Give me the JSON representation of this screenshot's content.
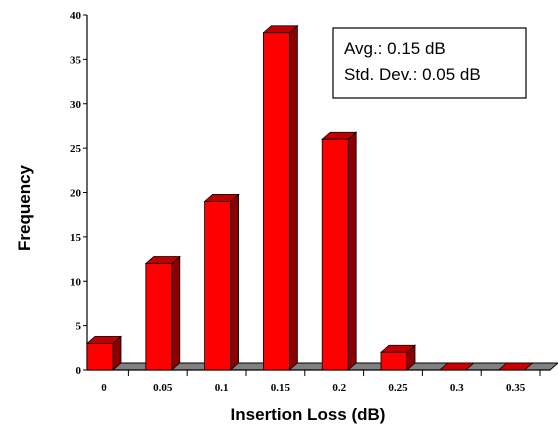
{
  "chart_data": {
    "type": "bar",
    "categories": [
      "0",
      "0.05",
      "0.1",
      "0.15",
      "0.2",
      "0.25",
      "0.3",
      "0.35"
    ],
    "values": [
      3,
      12,
      19,
      38,
      26,
      2,
      0,
      0
    ],
    "xlabel": "Insertion Loss (dB)",
    "ylabel": "Frequency",
    "ylim": [
      0,
      40
    ],
    "yticks": [
      "0",
      "5",
      "10",
      "15",
      "20",
      "25",
      "30",
      "35",
      "40"
    ],
    "grid": false,
    "style": "3d",
    "bar_color": "#ff0000",
    "floor_color": "#808080",
    "annotation": {
      "line1": "Avg.:  0.15 dB",
      "line2": "Std. Dev.:  0.05 dB",
      "placement": "top-right"
    }
  }
}
